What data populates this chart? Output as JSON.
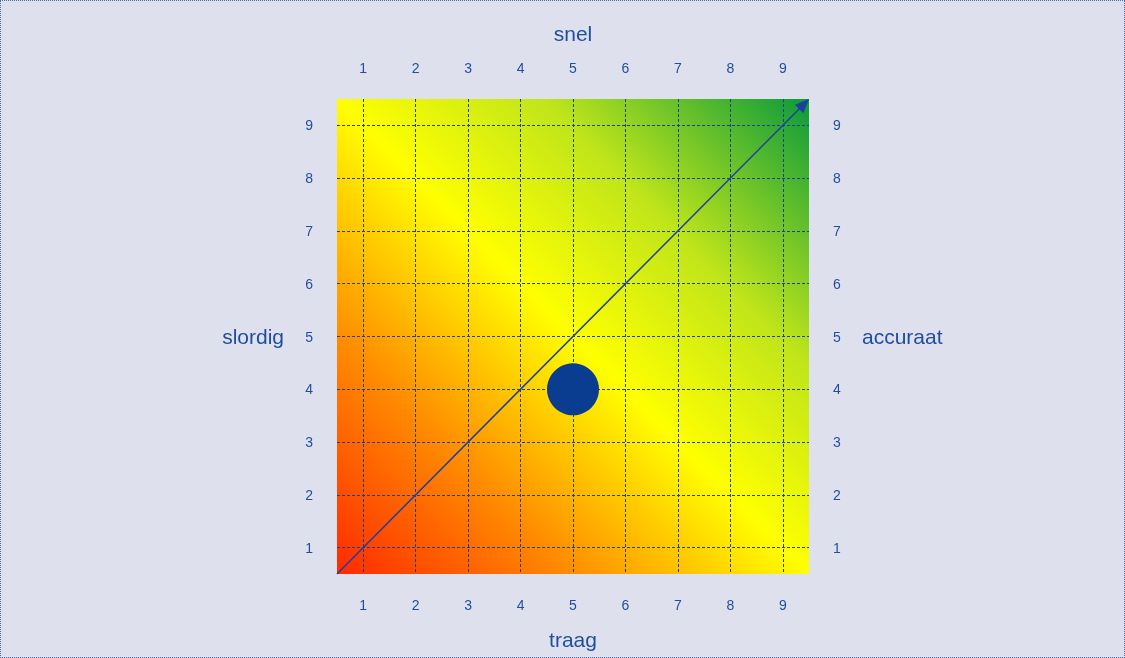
{
  "chart_data": {
    "type": "scatter",
    "xlabel": "traag",
    "ylabel": "slordig",
    "x2label": "snel",
    "y2label": "accuraat",
    "x": [
      5
    ],
    "values": [
      4
    ],
    "color": "#0a3d8f",
    "marker": "circle",
    "xlim": [
      0.5,
      9.5
    ],
    "xticks": [
      1,
      2,
      3,
      4,
      5,
      6,
      7,
      8,
      9
    ],
    "x2lim": [
      0.5,
      9.5
    ],
    "x2ticks": [
      1,
      2,
      3,
      4,
      5,
      6,
      7,
      8,
      9
    ],
    "ylim": [
      0.5,
      9.5
    ],
    "yticks": [
      1,
      2,
      3,
      4,
      5,
      6,
      7,
      8,
      9
    ],
    "y2lim": [
      0.5,
      9.5
    ],
    "y2ticks": [
      1,
      2,
      3,
      4,
      5,
      6,
      7,
      8,
      9
    ],
    "grid": true
  }
}
